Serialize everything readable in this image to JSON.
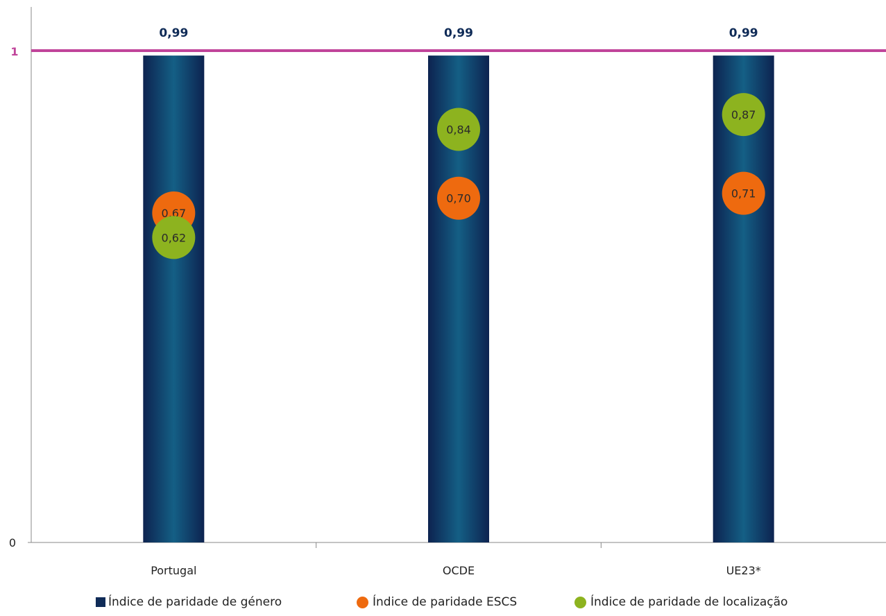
{
  "chart_data": {
    "type": "bar",
    "categories": [
      "Portugal",
      "OCDE",
      "UE23*"
    ],
    "series": [
      {
        "name": "Índice de paridade de género",
        "values": [
          0.99,
          0.99,
          0.99
        ],
        "labels": [
          "0,99",
          "0,99",
          "0,99"
        ],
        "color": "#0f2b57",
        "marker": "bar"
      },
      {
        "name": "Índice de paridade ESCS",
        "values": [
          0.67,
          0.7,
          0.71
        ],
        "labels": [
          "0,67",
          "0,70",
          "0,71"
        ],
        "color": "#ee6a0f",
        "marker": "circle"
      },
      {
        "name": "Índice de paridade de localização",
        "values": [
          0.62,
          0.84,
          0.87
        ],
        "labels": [
          "0,62",
          "0,84",
          "0,87"
        ],
        "color": "#8db31f",
        "marker": "circle"
      }
    ],
    "reference_line": {
      "value": 1,
      "label": "1",
      "color": "#c0449a"
    },
    "yticks": [
      {
        "value": 0,
        "label": "0"
      }
    ],
    "ylim": [
      0,
      1
    ],
    "legend": "bottom"
  }
}
